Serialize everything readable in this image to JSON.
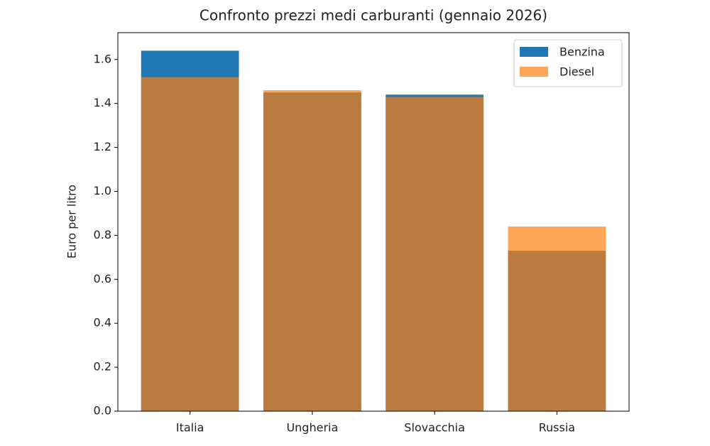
{
  "chart_data": {
    "type": "bar",
    "overlap": true,
    "title": "Confronto prezzi medi carburanti (gennaio 2026)",
    "y_label": "Euro per litro",
    "categories": [
      "Italia",
      "Ungheria",
      "Slovacchia",
      "Russia"
    ],
    "series": [
      {
        "name": "Benzina",
        "color": "#1f77b4",
        "opacity": 1,
        "values": [
          1.64,
          1.45,
          1.44,
          0.73
        ]
      },
      {
        "name": "Diesel",
        "color": "#ff7f0e",
        "opacity": 0.7,
        "values": [
          1.52,
          1.46,
          1.43,
          0.84
        ]
      }
    ],
    "ylim": [
      0,
      1.722
    ],
    "yticks": [
      {
        "value": 0,
        "label": "0.0"
      },
      0.2,
      0.4,
      0.6,
      0.8,
      {
        "value": 1,
        "label": "1.0"
      },
      1.2,
      1.4,
      1.6
    ],
    "legend": "upper right",
    "grid": false
  }
}
